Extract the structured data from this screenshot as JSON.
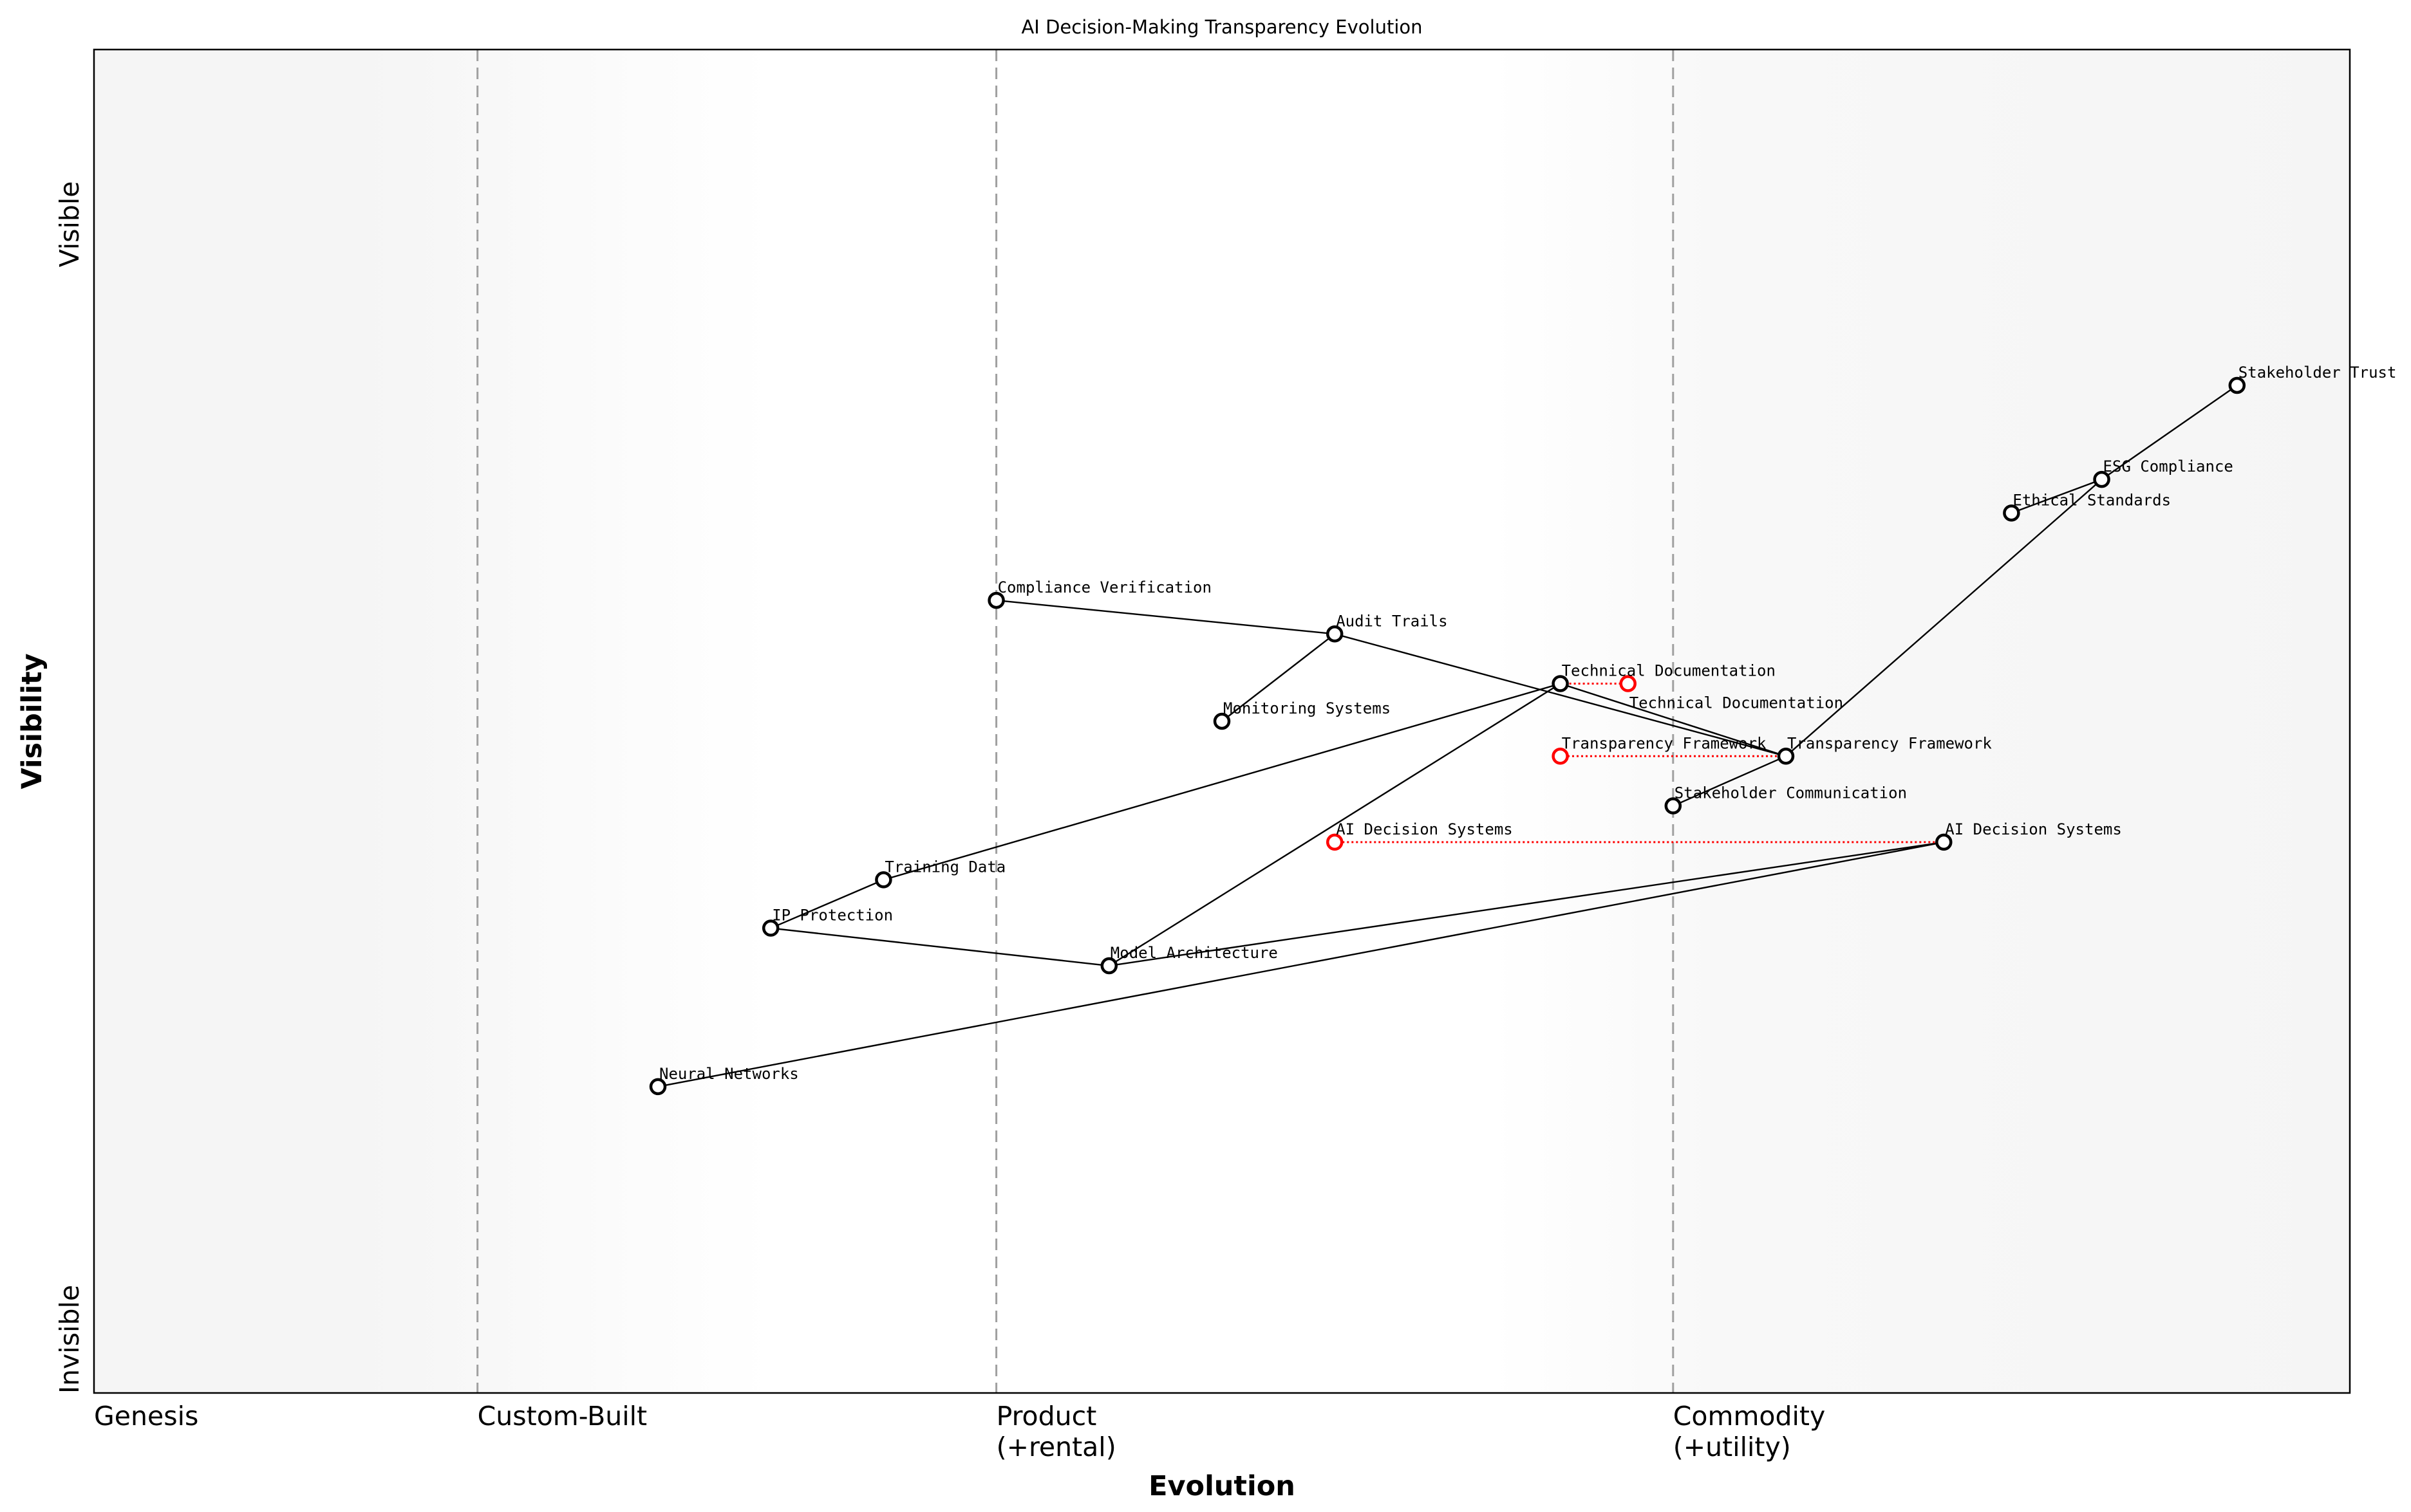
{
  "chart_data": {
    "type": "scatter",
    "subtype": "wardley-map",
    "title": "AI Decision-Making Transparency Evolution",
    "xlabel": "Evolution",
    "ylabel": "Visibility",
    "xlim": [
      0,
      1
    ],
    "ylim": [
      0,
      1
    ],
    "grid": false,
    "x_stages": [
      {
        "label": "Genesis",
        "x": 0.0
      },
      {
        "label": "Custom-Built",
        "x": 0.17
      },
      {
        "label": "Product\n(+rental)",
        "x": 0.4
      },
      {
        "label": "Commodity\n(+utility)",
        "x": 0.7
      }
    ],
    "y_labels": {
      "top": "Visible",
      "bottom": "Invisible"
    },
    "colors": {
      "node": "#000000",
      "evolved_node": "#ff0000",
      "link": "#000000",
      "evolution_link": "#ff0000",
      "stage_line": "#a0a0a0",
      "band_edge": "#f5f5f5",
      "band_center": "#ffffff"
    },
    "components": [
      {
        "name": "Stakeholder Trust",
        "x": 0.95,
        "y": 0.75
      },
      {
        "name": "ESG Compliance",
        "x": 0.89,
        "y": 0.68
      },
      {
        "name": "Ethical Standards",
        "x": 0.85,
        "y": 0.655
      },
      {
        "name": "Compliance Verification",
        "x": 0.4,
        "y": 0.59
      },
      {
        "name": "Audit Trails",
        "x": 0.55,
        "y": 0.565
      },
      {
        "name": "Technical Documentation",
        "x": 0.65,
        "y": 0.528
      },
      {
        "name": "Monitoring Systems",
        "x": 0.5,
        "y": 0.5
      },
      {
        "name": "Transparency Framework",
        "x": 0.75,
        "y": 0.474
      },
      {
        "name": "Stakeholder Communication",
        "x": 0.7,
        "y": 0.437
      },
      {
        "name": "AI Decision Systems",
        "x": 0.82,
        "y": 0.41
      },
      {
        "name": "Training Data",
        "x": 0.35,
        "y": 0.382
      },
      {
        "name": "IP Protection",
        "x": 0.3,
        "y": 0.346
      },
      {
        "name": "Model Architecture",
        "x": 0.45,
        "y": 0.318
      },
      {
        "name": "Neural Networks",
        "x": 0.25,
        "y": 0.228
      }
    ],
    "links": [
      [
        "Stakeholder Trust",
        "ESG Compliance"
      ],
      [
        "ESG Compliance",
        "Ethical Standards"
      ],
      [
        "ESG Compliance",
        "Transparency Framework"
      ],
      [
        "Compliance Verification",
        "Audit Trails"
      ],
      [
        "Audit Trails",
        "Monitoring Systems"
      ],
      [
        "Audit Trails",
        "Transparency Framework"
      ],
      [
        "Technical Documentation",
        "Transparency Framework"
      ],
      [
        "Transparency Framework",
        "Stakeholder Communication"
      ],
      [
        "Technical Documentation",
        "Training Data"
      ],
      [
        "Technical Documentation",
        "Model Architecture"
      ],
      [
        "Training Data",
        "IP Protection"
      ],
      [
        "IP Protection",
        "Model Architecture"
      ],
      [
        "Model Architecture",
        "AI Decision Systems"
      ],
      [
        "AI Decision Systems",
        "Neural Networks"
      ]
    ],
    "evolutions": [
      {
        "name": "Technical Documentation",
        "from_x": 0.65,
        "to_x": 0.68,
        "y": 0.528
      },
      {
        "name": "Transparency Framework",
        "from_x": 0.75,
        "to_x": 0.65,
        "y": 0.474
      },
      {
        "name": "AI Decision Systems",
        "from_x": 0.82,
        "to_x": 0.55,
        "y": 0.41
      }
    ]
  }
}
